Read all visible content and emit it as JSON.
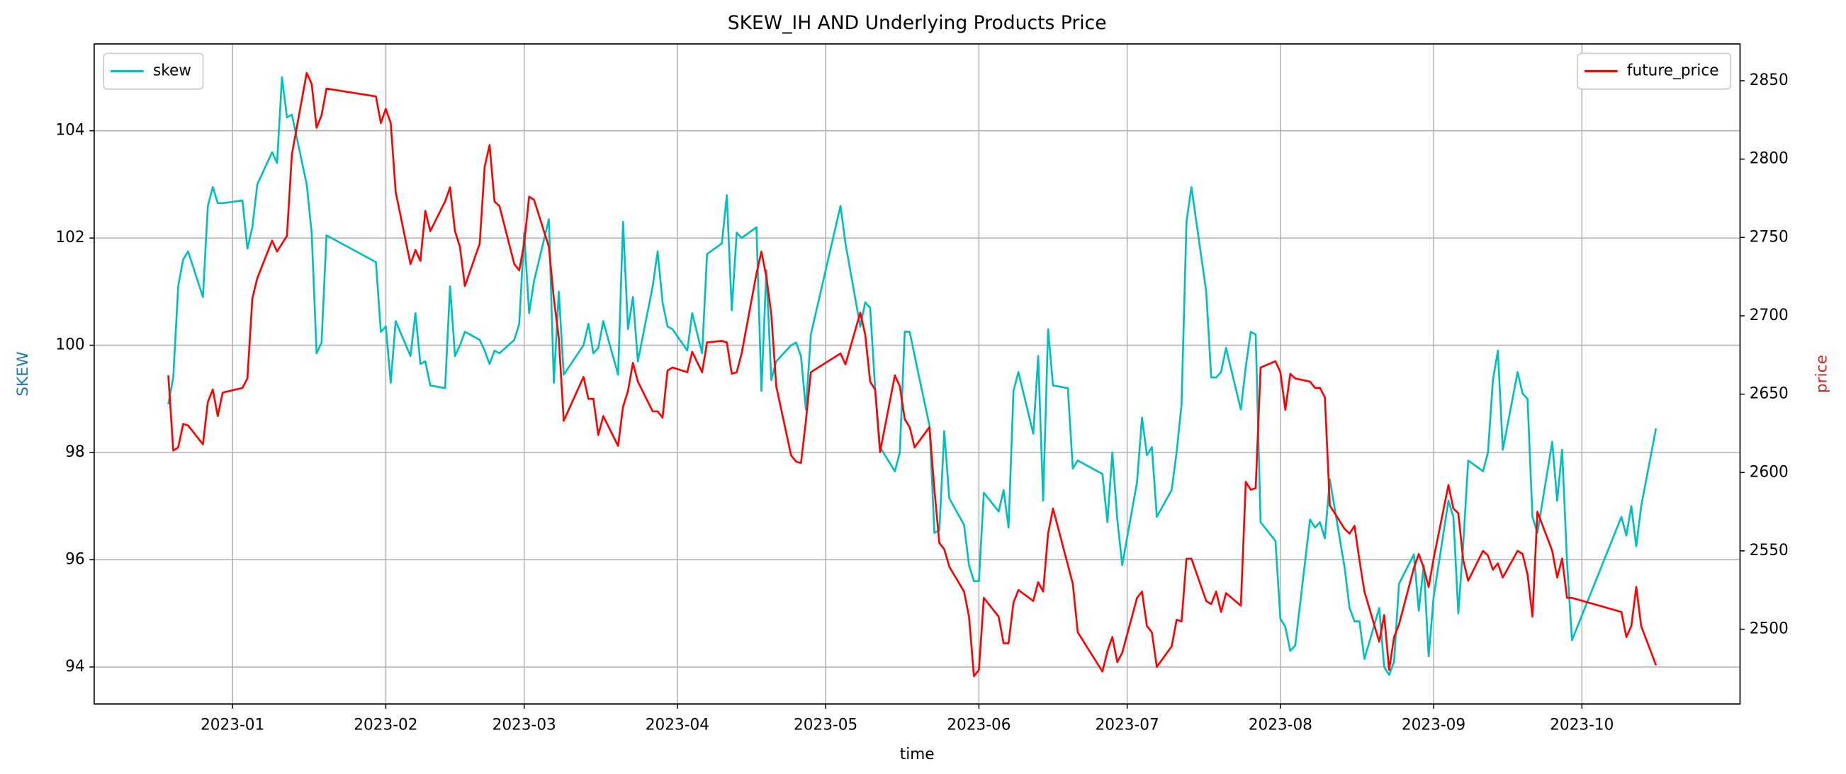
{
  "chart_data": {
    "type": "line",
    "title": "SKEW_IH AND Underlying Products Price",
    "xlabel": "time",
    "ylabel": "SKEW",
    "y2label": "price",
    "ylabel_color": "#1f77b4",
    "y2label_color": "#d62728",
    "grid": true,
    "xlim": [
      "2022-12-04",
      "2023-11-02"
    ],
    "xticks": [
      {
        "value": "2023-01-01",
        "label": "2023-01"
      },
      {
        "value": "2023-02-01",
        "label": "2023-02"
      },
      {
        "value": "2023-03-01",
        "label": "2023-03"
      },
      {
        "value": "2023-04-01",
        "label": "2023-04"
      },
      {
        "value": "2023-05-01",
        "label": "2023-05"
      },
      {
        "value": "2023-06-01",
        "label": "2023-06"
      },
      {
        "value": "2023-07-01",
        "label": "2023-07"
      },
      {
        "value": "2023-08-01",
        "label": "2023-08"
      },
      {
        "value": "2023-09-01",
        "label": "2023-09"
      },
      {
        "value": "2023-10-01",
        "label": "2023-10"
      }
    ],
    "ylim": [
      93.31,
      105.62
    ],
    "yticks": [
      94,
      96,
      98,
      100,
      102,
      104
    ],
    "y2lim": [
      2452.3,
      2873.5
    ],
    "y2ticks": [
      2500,
      2550,
      2600,
      2650,
      2700,
      2750,
      2800,
      2850
    ],
    "x": [
      "2022-12-19",
      "2022-12-20",
      "2022-12-21",
      "2022-12-22",
      "2022-12-23",
      "2022-12-26",
      "2022-12-27",
      "2022-12-28",
      "2022-12-29",
      "2022-12-30",
      "2023-01-03",
      "2023-01-04",
      "2023-01-05",
      "2023-01-06",
      "2023-01-09",
      "2023-01-10",
      "2023-01-11",
      "2023-01-12",
      "2023-01-13",
      "2023-01-16",
      "2023-01-17",
      "2023-01-18",
      "2023-01-19",
      "2023-01-20",
      "2023-01-30",
      "2023-01-31",
      "2023-02-01",
      "2023-02-02",
      "2023-02-03",
      "2023-02-06",
      "2023-02-07",
      "2023-02-08",
      "2023-02-09",
      "2023-02-10",
      "2023-02-13",
      "2023-02-14",
      "2023-02-15",
      "2023-02-16",
      "2023-02-17",
      "2023-02-20",
      "2023-02-21",
      "2023-02-22",
      "2023-02-23",
      "2023-02-24",
      "2023-02-27",
      "2023-02-28",
      "2023-03-01",
      "2023-03-02",
      "2023-03-03",
      "2023-03-06",
      "2023-03-07",
      "2023-03-08",
      "2023-03-09",
      "2023-03-13",
      "2023-03-14",
      "2023-03-15",
      "2023-03-16",
      "2023-03-17",
      "2023-03-20",
      "2023-03-21",
      "2023-03-22",
      "2023-03-23",
      "2023-03-24",
      "2023-03-27",
      "2023-03-28",
      "2023-03-29",
      "2023-03-30",
      "2023-03-31",
      "2023-04-03",
      "2023-04-04",
      "2023-04-06",
      "2023-04-07",
      "2023-04-10",
      "2023-04-11",
      "2023-04-12",
      "2023-04-13",
      "2023-04-14",
      "2023-04-17",
      "2023-04-18",
      "2023-04-19",
      "2023-04-20",
      "2023-04-21",
      "2023-04-24",
      "2023-04-25",
      "2023-04-26",
      "2023-04-27",
      "2023-04-28",
      "2023-05-04",
      "2023-05-05",
      "2023-05-08",
      "2023-05-09",
      "2023-05-10",
      "2023-05-11",
      "2023-05-12",
      "2023-05-15",
      "2023-05-16",
      "2023-05-17",
      "2023-05-18",
      "2023-05-19",
      "2023-05-22",
      "2023-05-23",
      "2023-05-24",
      "2023-05-25",
      "2023-05-26",
      "2023-05-29",
      "2023-05-30",
      "2023-05-31",
      "2023-06-01",
      "2023-06-02",
      "2023-06-05",
      "2023-06-06",
      "2023-06-07",
      "2023-06-08",
      "2023-06-09",
      "2023-06-12",
      "2023-06-13",
      "2023-06-14",
      "2023-06-15",
      "2023-06-16",
      "2023-06-19",
      "2023-06-20",
      "2023-06-21",
      "2023-06-26",
      "2023-06-27",
      "2023-06-28",
      "2023-06-29",
      "2023-06-30",
      "2023-07-03",
      "2023-07-04",
      "2023-07-05",
      "2023-07-06",
      "2023-07-07",
      "2023-07-10",
      "2023-07-11",
      "2023-07-12",
      "2023-07-13",
      "2023-07-14",
      "2023-07-17",
      "2023-07-18",
      "2023-07-19",
      "2023-07-20",
      "2023-07-21",
      "2023-07-24",
      "2023-07-25",
      "2023-07-26",
      "2023-07-27",
      "2023-07-28",
      "2023-07-31",
      "2023-08-01",
      "2023-08-02",
      "2023-08-03",
      "2023-08-04",
      "2023-08-07",
      "2023-08-08",
      "2023-08-09",
      "2023-08-10",
      "2023-08-11",
      "2023-08-14",
      "2023-08-15",
      "2023-08-16",
      "2023-08-17",
      "2023-08-18",
      "2023-08-21",
      "2023-08-22",
      "2023-08-23",
      "2023-08-24",
      "2023-08-25",
      "2023-08-28",
      "2023-08-29",
      "2023-08-30",
      "2023-08-31",
      "2023-09-01",
      "2023-09-04",
      "2023-09-05",
      "2023-09-06",
      "2023-09-07",
      "2023-09-08",
      "2023-09-11",
      "2023-09-12",
      "2023-09-13",
      "2023-09-14",
      "2023-09-15",
      "2023-09-18",
      "2023-09-19",
      "2023-09-20",
      "2023-09-21",
      "2023-09-22",
      "2023-09-25",
      "2023-09-26",
      "2023-09-27",
      "2023-09-28",
      "2023-09-29",
      "2023-10-09",
      "2023-10-10",
      "2023-10-11",
      "2023-10-12",
      "2023-10-13",
      "2023-10-16"
    ],
    "series": [
      {
        "name": "skew",
        "color": "#00bfbf",
        "axis": "y",
        "legend": "upper left",
        "values": [
          98.9,
          99.4,
          101.1,
          101.6,
          101.75,
          100.9,
          102.6,
          102.95,
          102.65,
          102.65,
          102.7,
          101.8,
          102.2,
          103.0,
          103.6,
          103.4,
          105.0,
          104.25,
          104.3,
          103.0,
          102.1,
          99.85,
          100.05,
          102.05,
          101.55,
          100.25,
          100.35,
          99.3,
          100.45,
          99.8,
          100.6,
          99.65,
          99.7,
          99.25,
          99.2,
          101.1,
          99.8,
          100.0,
          100.25,
          100.1,
          99.9,
          99.65,
          99.9,
          99.85,
          100.1,
          100.4,
          102.1,
          100.6,
          101.2,
          102.35,
          99.3,
          101.0,
          99.45,
          100.0,
          100.4,
          99.85,
          99.95,
          100.45,
          99.45,
          102.3,
          100.3,
          100.9,
          99.7,
          101.1,
          101.75,
          100.8,
          100.35,
          100.3,
          99.9,
          100.6,
          99.85,
          101.7,
          101.9,
          102.8,
          100.65,
          102.1,
          102.0,
          102.2,
          99.15,
          101.4,
          99.35,
          99.7,
          100.0,
          100.05,
          99.8,
          98.8,
          100.2,
          102.6,
          101.9,
          100.35,
          100.8,
          100.7,
          99.2,
          98.1,
          97.65,
          98.0,
          100.25,
          100.25,
          99.8,
          98.5,
          96.5,
          96.55,
          98.4,
          97.15,
          96.65,
          95.9,
          95.6,
          95.6,
          97.25,
          96.9,
          97.3,
          96.6,
          99.15,
          99.5,
          98.35,
          99.8,
          97.1,
          100.3,
          99.25,
          99.2,
          97.7,
          97.85,
          97.6,
          96.7,
          98.0,
          96.75,
          95.9,
          97.45,
          98.65,
          97.95,
          98.1,
          96.8,
          97.3,
          98.0,
          98.9,
          102.3,
          102.95,
          101.0,
          99.4,
          99.4,
          99.5,
          99.95,
          98.8,
          99.6,
          100.25,
          100.2,
          96.7,
          96.35,
          94.9,
          94.75,
          94.3,
          94.4,
          96.75,
          96.6,
          96.7,
          96.4,
          97.5,
          95.85,
          95.1,
          94.85,
          94.85,
          94.15,
          95.1,
          94.0,
          93.85,
          94.1,
          95.55,
          96.1,
          95.05,
          95.9,
          94.2,
          95.3,
          97.1,
          96.8,
          95.0,
          96.3,
          97.85,
          97.65,
          98.0,
          99.35,
          99.9,
          98.05,
          99.5,
          99.1,
          99.0,
          96.8,
          96.5,
          98.2,
          97.1,
          98.05,
          95.95,
          94.5,
          96.8,
          96.45,
          97.0,
          96.25,
          97.0,
          98.45
        ]
      },
      {
        "name": "future_price",
        "color": "#ff0000",
        "axis": "y2",
        "legend": "upper right",
        "values": [
          2662,
          2614,
          2616,
          2631,
          2630,
          2618,
          2645,
          2653,
          2636,
          2651,
          2654,
          2660,
          2711,
          2724,
          2748,
          2741,
          2746,
          2751,
          2803,
          2855,
          2848,
          2820,
          2828,
          2845,
          2840,
          2823,
          2832,
          2823,
          2779,
          2733,
          2742,
          2735,
          2767,
          2754,
          2773,
          2782,
          2754,
          2744,
          2719,
          2746,
          2795,
          2809,
          2773,
          2770,
          2733,
          2729,
          2746,
          2776,
          2774,
          2744,
          2711,
          2686,
          2633,
          2661,
          2647,
          2647,
          2624,
          2636,
          2617,
          2642,
          2652,
          2670,
          2658,
          2639,
          2639,
          2635,
          2665,
          2667,
          2664,
          2677,
          2664,
          2683,
          2684,
          2683,
          2663,
          2664,
          2676,
          2727,
          2741,
          2725,
          2701,
          2655,
          2611,
          2607,
          2606,
          2633,
          2664,
          2676,
          2669,
          2702,
          2688,
          2658,
          2653,
          2613,
          2662,
          2655,
          2634,
          2629,
          2616,
          2629,
          2589,
          2555,
          2551,
          2540,
          2524,
          2508,
          2470,
          2474,
          2520,
          2508,
          2491,
          2491,
          2517,
          2525,
          2518,
          2530,
          2524,
          2561,
          2577,
          2541,
          2529,
          2498,
          2473,
          2486,
          2495,
          2479,
          2485,
          2520,
          2524,
          2502,
          2498,
          2476,
          2489,
          2506,
          2505,
          2545,
          2545,
          2518,
          2516,
          2524,
          2511,
          2523,
          2515,
          2594,
          2589,
          2590,
          2667,
          2671,
          2664,
          2640,
          2663,
          2660,
          2658,
          2654,
          2654,
          2648,
          2579,
          2564,
          2561,
          2566,
          2544,
          2524,
          2492,
          2509,
          2474,
          2495,
          2503,
          2539,
          2548,
          2539,
          2527,
          2545,
          2592,
          2577,
          2574,
          2544,
          2531,
          2550,
          2547,
          2538,
          2542,
          2533,
          2550,
          2548,
          2535,
          2508,
          2575,
          2550,
          2533,
          2545,
          2520,
          2520,
          2511,
          2495,
          2502,
          2527,
          2502,
          2477
        ]
      }
    ]
  }
}
